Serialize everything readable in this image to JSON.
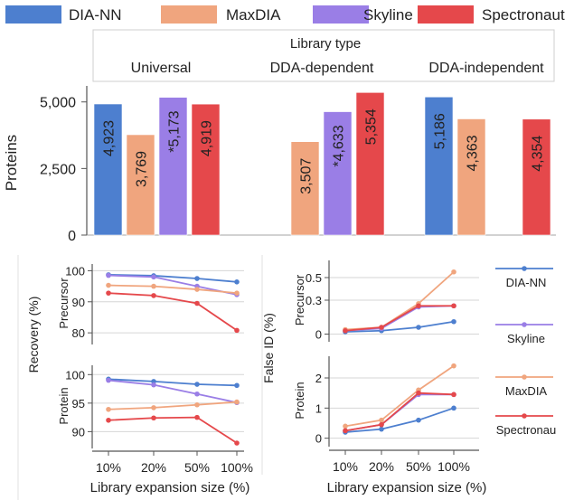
{
  "colors": {
    "DIA-NN": "#4d7fcf",
    "MaxDIA": "#f0a57e",
    "Skyline": "#9a7ee6",
    "Spectronaut": "#e5484b",
    "axis": "#555555",
    "grid": "#d6d6d6"
  },
  "legend": [
    "DIA-NN",
    "MaxDIA",
    "Skyline",
    "Spectronaut"
  ],
  "chart_data": [
    {
      "id": "proteins",
      "type": "bar",
      "title": "Library type",
      "ylabel": "Proteins",
      "ylim": [
        0,
        5500
      ],
      "yticks": [
        "0",
        "2,500",
        "5,000"
      ],
      "ytick_values": [
        0,
        2500,
        5000
      ],
      "tools": [
        "DIA-NN",
        "MaxDIA",
        "Skyline",
        "Spectronaut"
      ],
      "categories": [
        "Universal",
        "DDA-dependent",
        "DDA-independent"
      ],
      "values": [
        [
          4923,
          3769,
          5173,
          4919
        ],
        [
          null,
          3507,
          4633,
          5354
        ],
        [
          5186,
          4363,
          null,
          4354
        ]
      ],
      "labels": [
        [
          "4,923",
          "3,769",
          "*5,173",
          "4,919"
        ],
        [
          null,
          "3,507",
          "*4,633",
          "5,354"
        ],
        [
          "5,186",
          "4,363",
          null,
          "4,354"
        ]
      ]
    },
    {
      "id": "recovery",
      "type": "line",
      "ylabel": "Recovery (%)",
      "xlabel": "Library expansion size (%)",
      "x": [
        "10%",
        "20%",
        "50%",
        "100%"
      ],
      "panels": [
        {
          "label": "Precursor",
          "ylim": [
            78,
            101
          ],
          "yticks": [
            80,
            90,
            100
          ],
          "series": [
            {
              "name": "DIA-NN",
              "values": [
                98.7,
                98.4,
                97.5,
                96.4
              ]
            },
            {
              "name": "Skyline",
              "values": [
                98.5,
                98.0,
                95.0,
                92.3
              ]
            },
            {
              "name": "MaxDIA",
              "values": [
                95.3,
                95.0,
                94.0,
                92.8
              ]
            },
            {
              "name": "Spectronaut",
              "values": [
                92.8,
                92.0,
                89.5,
                80.8
              ]
            }
          ]
        },
        {
          "label": "Protein",
          "ylim": [
            88,
            101
          ],
          "yticks": [
            90,
            95,
            100
          ],
          "series": [
            {
              "name": "DIA-NN",
              "values": [
                99.2,
                98.8,
                98.3,
                98.1
              ]
            },
            {
              "name": "Skyline",
              "values": [
                99.0,
                98.2,
                96.6,
                95.1
              ]
            },
            {
              "name": "MaxDIA",
              "values": [
                93.9,
                94.2,
                94.7,
                95.2
              ]
            },
            {
              "name": "Spectronaut",
              "values": [
                92.0,
                92.4,
                92.5,
                88.0
              ]
            }
          ]
        }
      ]
    },
    {
      "id": "false_id",
      "type": "line",
      "ylabel": "False ID (%)",
      "xlabel": "Library expansion size (%)",
      "x": [
        "10%",
        "20%",
        "50%",
        "100%"
      ],
      "panels": [
        {
          "label": "Precursor",
          "ylim": [
            -0.02,
            0.62
          ],
          "yticks": [
            0,
            0.3,
            0.5
          ],
          "ytick_labels": [
            "0",
            "0.3",
            "0.5"
          ],
          "series": [
            {
              "name": "DIA-NN",
              "values": [
                0.02,
                0.03,
                0.06,
                0.11
              ]
            },
            {
              "name": "Skyline",
              "values": [
                0.03,
                0.05,
                0.24,
                0.25
              ]
            },
            {
              "name": "MaxDIA",
              "values": [
                0.04,
                0.06,
                0.27,
                0.55
              ]
            },
            {
              "name": "Spectronaut",
              "values": [
                0.03,
                0.06,
                0.25,
                0.25
              ]
            }
          ]
        },
        {
          "label": "Protein",
          "ylim": [
            -0.1,
            2.6
          ],
          "yticks": [
            0,
            1,
            2
          ],
          "ytick_labels": [
            "0",
            "1",
            "2"
          ],
          "series": [
            {
              "name": "DIA-NN",
              "values": [
                0.2,
                0.3,
                0.6,
                1.0
              ]
            },
            {
              "name": "Skyline",
              "values": [
                0.25,
                0.45,
                1.45,
                1.45
              ]
            },
            {
              "name": "MaxDIA",
              "values": [
                0.4,
                0.6,
                1.6,
                2.4
              ]
            },
            {
              "name": "Spectronaut",
              "values": [
                0.25,
                0.45,
                1.5,
                1.45
              ]
            }
          ]
        }
      ]
    }
  ],
  "line_legend": [
    "DIA-NN",
    "Skyline",
    "MaxDIA",
    "Spectronau"
  ]
}
